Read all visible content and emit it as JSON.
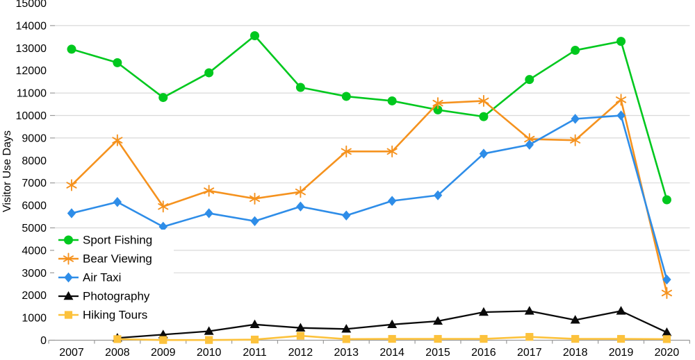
{
  "chart_data": {
    "type": "line",
    "title": "",
    "xlabel": "",
    "ylabel": "Visitor Use Days",
    "categories": [
      "2007",
      "2008",
      "2009",
      "2010",
      "2011",
      "2012",
      "2013",
      "2014",
      "2015",
      "2016",
      "2017",
      "2018",
      "2019",
      "2020"
    ],
    "series": [
      {
        "name": "Sport Fishing",
        "color": "#00c81e",
        "marker": "circle",
        "values": [
          12950,
          12350,
          10800,
          11900,
          13550,
          11250,
          10850,
          10650,
          10250,
          9950,
          11600,
          12900,
          13300,
          6250
        ]
      },
      {
        "name": "Bear Viewing",
        "color": "#f5921e",
        "marker": "asterisk",
        "values": [
          6900,
          8900,
          5950,
          6650,
          6300,
          6600,
          8400,
          8400,
          10550,
          10650,
          8950,
          8900,
          10700,
          2100
        ]
      },
      {
        "name": "Air Taxi",
        "color": "#2e8de8",
        "marker": "diamond",
        "values": [
          5650,
          6150,
          5050,
          5650,
          5300,
          5950,
          5550,
          6200,
          6450,
          8300,
          8700,
          9850,
          10000,
          2700
        ]
      },
      {
        "name": "Photography",
        "color": "#0a0a0a",
        "marker": "triangle",
        "values": [
          null,
          100,
          250,
          400,
          700,
          550,
          500,
          700,
          850,
          1250,
          1300,
          900,
          1300,
          350
        ]
      },
      {
        "name": "Hiking Tours",
        "color": "#fcc23c",
        "marker": "square",
        "values": [
          null,
          50,
          10,
          10,
          30,
          200,
          50,
          60,
          60,
          60,
          150,
          60,
          60,
          50
        ]
      }
    ],
    "ylim": [
      0,
      15000
    ],
    "ytick_step": 1000,
    "ytick_labels": [
      "0",
      "1000",
      "2000",
      "3000",
      "4000",
      "5000",
      "6000",
      "7000",
      "8000",
      "9000",
      "10000",
      "11000",
      "12000",
      "13000",
      "14000",
      "15000"
    ],
    "gridlines": [
      3000,
      4000,
      5000,
      7000,
      9000,
      10000,
      11000,
      14000
    ],
    "grid_on": true,
    "legend_position": "middle-left",
    "colors": {
      "grid": "#d9d9d9",
      "axis": "#9a9a9a",
      "text": "#000000",
      "legend_background": "#ffffff"
    }
  }
}
